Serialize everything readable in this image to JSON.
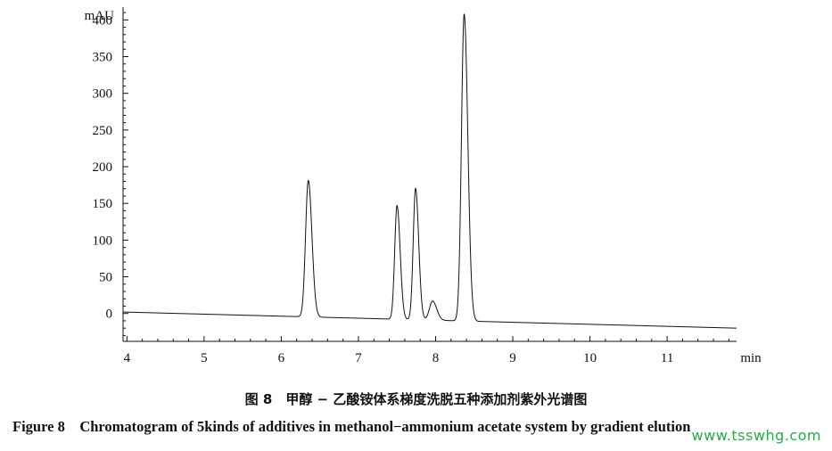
{
  "chart_data": {
    "type": "line",
    "title": "",
    "xlabel": "min",
    "ylabel": "mAU",
    "xlim": [
      3.95,
      11.9
    ],
    "ylim": [
      -38,
      415
    ],
    "x_ticks": [
      4,
      5,
      6,
      7,
      8,
      9,
      10,
      11
    ],
    "y_ticks": [
      0,
      50,
      100,
      150,
      200,
      250,
      300,
      350,
      400
    ],
    "grid": false,
    "baseline": {
      "start": 2,
      "end": -20
    },
    "peaks": [
      {
        "retention_time": 6.35,
        "height": 186
      },
      {
        "retention_time": 7.5,
        "height": 155
      },
      {
        "retention_time": 7.74,
        "height": 179
      },
      {
        "retention_time": 7.96,
        "height": 26
      },
      {
        "retention_time": 8.37,
        "height": 418
      }
    ],
    "series": [
      {
        "name": "",
        "color": "#111111"
      }
    ]
  },
  "caption": {
    "chinese": "图 8　甲醇 − 乙酸铵体系梯度洗脱五种添加剂紫外光谱图",
    "english": "Figure 8　Chromatogram of 5kinds of additives in methanol−ammonium acetate system by gradient elution"
  },
  "watermark": "www.tsswhg.com"
}
